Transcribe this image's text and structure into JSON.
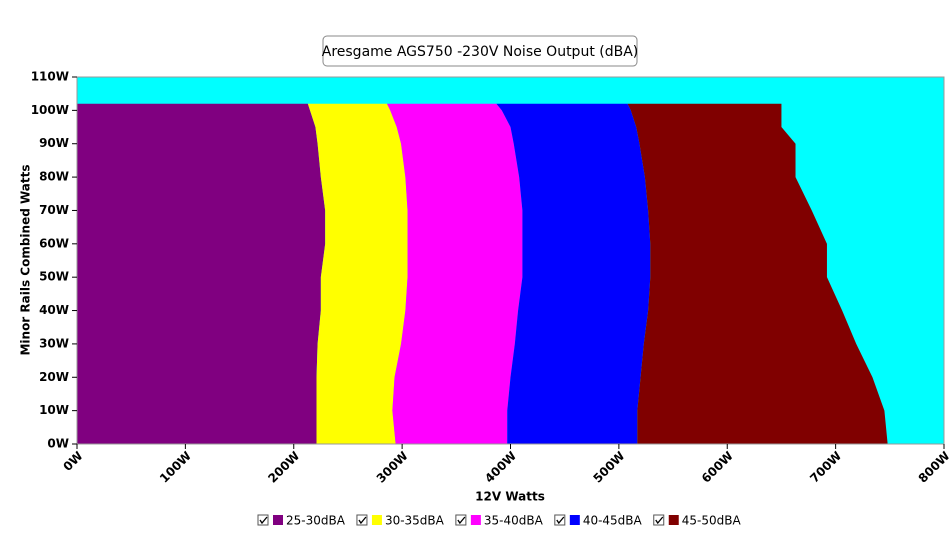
{
  "chart_data": {
    "type": "area-map",
    "title": "Aresgame AGS750 -230V Noise Output (dBA)",
    "x_label": "12V Watts",
    "y_label": "Minor Rails Combined Watts",
    "background": "#00ffff",
    "xlim": [
      0,
      800
    ],
    "xticks": [
      {
        "value": 0,
        "label": "0W"
      },
      {
        "value": 100,
        "label": "100W"
      },
      {
        "value": 200,
        "label": "200W"
      },
      {
        "value": 300,
        "label": "300W"
      },
      {
        "value": 400,
        "label": "400W"
      },
      {
        "value": 500,
        "label": "500W"
      },
      {
        "value": 600,
        "label": "600W"
      },
      {
        "value": 700,
        "label": "700W"
      },
      {
        "value": 800,
        "label": "800W"
      }
    ],
    "ylim": [
      0,
      110
    ],
    "yticks": [
      {
        "value": 0,
        "label": "0W"
      },
      {
        "value": 10,
        "label": "10W"
      },
      {
        "value": 20,
        "label": "20W"
      },
      {
        "value": 30,
        "label": "30W"
      },
      {
        "value": 40,
        "label": "40W"
      },
      {
        "value": 50,
        "label": "50W"
      },
      {
        "value": 60,
        "label": "60W"
      },
      {
        "value": 70,
        "label": "70W"
      },
      {
        "value": 80,
        "label": "80W"
      },
      {
        "value": 90,
        "label": "90W"
      },
      {
        "value": 100,
        "label": "100W"
      },
      {
        "value": 110,
        "label": "110W"
      }
    ],
    "y": [
      0,
      10,
      20,
      30,
      40,
      50,
      60,
      70,
      80,
      90,
      95,
      100,
      102
    ],
    "series": [
      {
        "name": "25-30dBA",
        "color": "#800080",
        "values": [
          221,
          221,
          221,
          222,
          225,
          225,
          229,
          229,
          225,
          222,
          220,
          215,
          213
        ]
      },
      {
        "name": "30-35dBA",
        "color": "#ffff00",
        "values": [
          294,
          291,
          293,
          299,
          303,
          305,
          305,
          305,
          303,
          299,
          295,
          289,
          286
        ]
      },
      {
        "name": "35-40dBA",
        "color": "#ff00ff",
        "values": [
          397,
          397,
          400,
          404,
          407,
          411,
          411,
          411,
          408,
          403,
          400,
          392,
          387
        ]
      },
      {
        "name": "40-45dBA",
        "color": "#0000ff",
        "values": [
          517,
          517,
          520,
          523,
          527,
          529,
          529,
          527,
          524,
          519,
          516,
          511,
          508
        ]
      },
      {
        "name": "45-50dBA",
        "color": "#800000",
        "values": [
          748,
          745,
          734,
          719,
          706,
          692,
          692,
          678,
          663,
          663,
          650,
          650,
          650
        ]
      }
    ]
  }
}
